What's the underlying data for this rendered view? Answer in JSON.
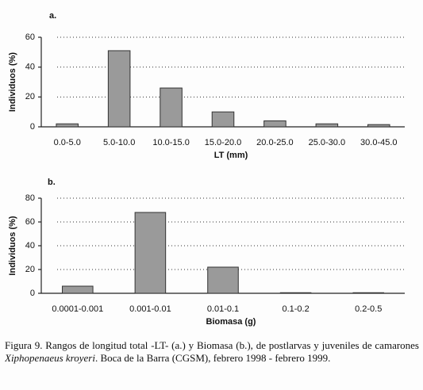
{
  "chart_data": [
    {
      "type": "bar",
      "title": "a.",
      "ylabel": "Individuos (%)",
      "xlabel": "LT (mm)",
      "categories": [
        "0.0-5.0",
        "5.0-10.0",
        "10.0-15.0",
        "15.0-20.0",
        "20.0-25.0",
        "25.0-30.0",
        "30.0-45.0"
      ],
      "values": [
        2,
        51,
        26,
        10,
        4,
        2,
        1.5
      ],
      "color": "#9a9a9a",
      "ylim": [
        0,
        60
      ],
      "yticks": [
        0,
        20,
        40,
        60
      ],
      "grid": true
    },
    {
      "type": "bar",
      "title": "b.",
      "ylabel": "Individuos (%)",
      "xlabel": "Biomasa (g)",
      "categories": [
        "0.0001-0.001",
        "0.001-0.01",
        "0.01-0.1",
        "0.1-0.2",
        "0.2-0.5"
      ],
      "values": [
        6,
        68,
        22,
        0.5,
        0.5
      ],
      "color": "#9a9a9a",
      "ylim": [
        0,
        80
      ],
      "yticks": [
        0,
        20,
        40,
        60,
        80
      ],
      "grid": true
    }
  ],
  "caption": {
    "before": "Figura 9. Rangos de longitud total -LT- (a.) y Biomasa (b.), de postlarvas y juveniles de camarones ",
    "species": "Xiphopenaeus kroyeri",
    "after": ". Boca de la Barra (CGSM), febrero 1998 - febrero 1999."
  }
}
